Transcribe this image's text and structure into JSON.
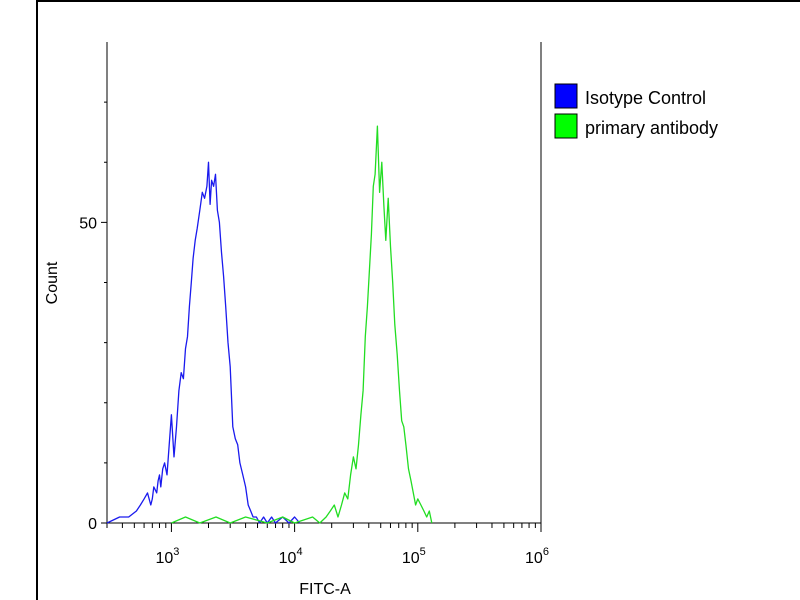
{
  "chart_data": {
    "type": "line",
    "x_scale": "log",
    "xlabel": "FITC-A",
    "ylabel": "Count",
    "xlim": [
      300,
      1000000
    ],
    "ylim": [
      0,
      80
    ],
    "x_ticks": [
      {
        "value": 1000,
        "base": "10",
        "exp": "3"
      },
      {
        "value": 10000,
        "base": "10",
        "exp": "4"
      },
      {
        "value": 100000,
        "base": "10",
        "exp": "5"
      },
      {
        "value": 1000000,
        "base": "10",
        "exp": "6"
      }
    ],
    "y_ticks": [
      {
        "value": 0,
        "label": "0"
      },
      {
        "value": 50,
        "label": "50"
      }
    ],
    "grid": false,
    "legend_position": "top-right",
    "series": [
      {
        "name": "Isotype Control",
        "color": "#1a1aee",
        "swatch_color": "#0000ff",
        "x": [
          300,
          380,
          450,
          520,
          560,
          600,
          640,
          680,
          700,
          720,
          760,
          780,
          800,
          820,
          850,
          880,
          920,
          960,
          1000,
          1050,
          1100,
          1150,
          1200,
          1250,
          1300,
          1350,
          1400,
          1450,
          1500,
          1560,
          1620,
          1700,
          1780,
          1860,
          1940,
          2000,
          2060,
          2120,
          2200,
          2280,
          2360,
          2450,
          2550,
          2650,
          2760,
          2880,
          3000,
          3150,
          3300,
          3450,
          3600,
          3800,
          4000,
          4200,
          4400,
          4600,
          4900,
          5200,
          5600,
          6000,
          6500,
          7000,
          8000,
          9000,
          10000,
          11000
        ],
        "y": [
          0,
          1,
          1,
          2,
          3,
          4,
          5,
          3,
          4,
          6,
          5,
          7,
          8,
          6,
          9,
          10,
          8,
          13,
          18,
          11,
          16,
          22,
          25,
          24,
          29,
          31,
          36,
          40,
          44,
          47,
          49,
          52,
          55,
          54,
          56,
          60,
          53,
          57,
          56,
          58,
          52,
          50,
          45,
          41,
          36,
          30,
          26,
          16,
          14,
          13,
          10,
          8,
          6,
          3,
          2,
          1,
          1,
          0,
          1,
          0,
          1,
          0,
          1,
          0,
          1,
          0
        ]
      },
      {
        "name": "primary antibody",
        "color": "#22dd22",
        "swatch_color": "#00ff00",
        "x": [
          1000,
          1300,
          1700,
          2300,
          3000,
          4000,
          6000,
          8000,
          10000,
          14000,
          16000,
          18000,
          19500,
          21000,
          22500,
          24000,
          25500,
          27000,
          28500,
          30000,
          31500,
          33000,
          34500,
          36000,
          37500,
          39000,
          40500,
          42000,
          43500,
          45000,
          47000,
          49000,
          51000,
          53000,
          55000,
          57500,
          60000,
          62500,
          65000,
          68000,
          71000,
          74000,
          77000,
          80000,
          84000,
          88000,
          92000,
          96000,
          100000,
          106000,
          112000,
          118000,
          124000,
          130000
        ],
        "y": [
          0,
          1,
          0,
          1,
          0,
          1,
          0,
          1,
          0,
          1,
          0,
          1,
          2,
          3,
          1,
          3,
          5,
          4,
          8,
          11,
          9,
          13,
          18,
          22,
          31,
          36,
          42,
          48,
          56,
          58,
          66,
          55,
          60,
          53,
          47,
          54,
          46,
          40,
          33,
          28,
          22,
          17,
          16,
          13,
          9,
          7,
          5,
          3,
          4,
          3,
          2,
          1,
          2,
          0
        ]
      }
    ]
  }
}
